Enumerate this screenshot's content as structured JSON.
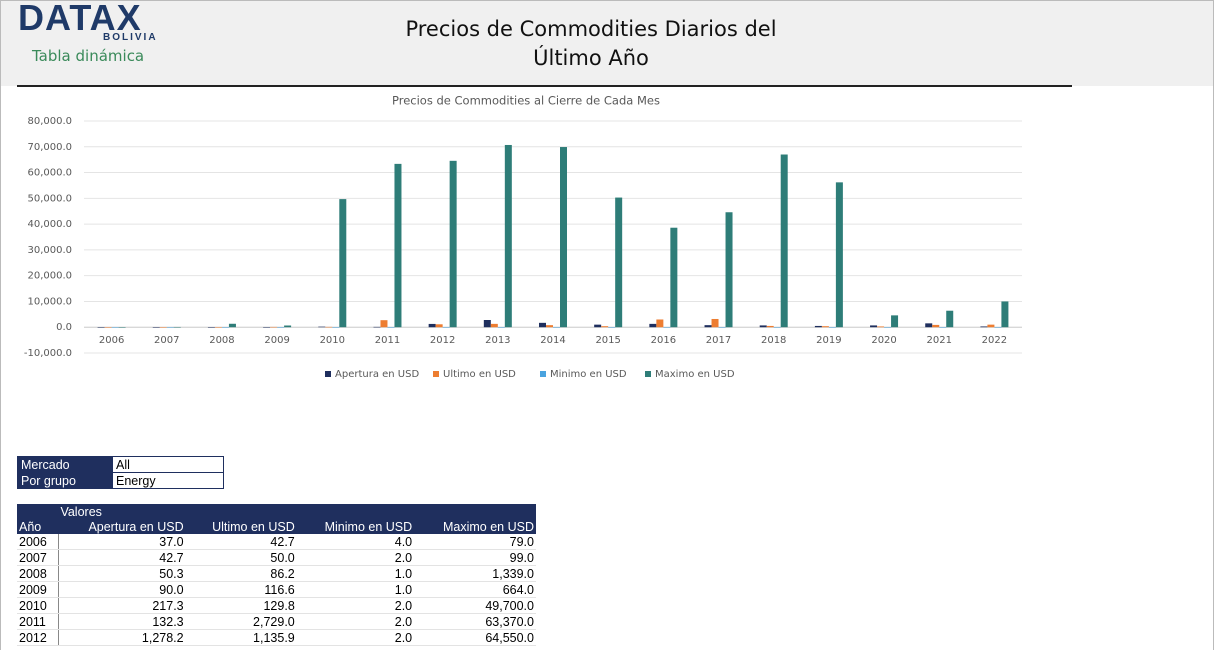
{
  "header": {
    "logo": "DATAX",
    "logo_sub": "BOLIVIA",
    "subtitle": "Tabla dinámica",
    "title": "Precios de Commodities Diarios del Último Año"
  },
  "chart_data": {
    "type": "bar",
    "title": "Precios de Commodities al Cierre de Cada Mes",
    "categories": [
      "2006",
      "2007",
      "2008",
      "2009",
      "2010",
      "2011",
      "2012",
      "2013",
      "2014",
      "2015",
      "2016",
      "2017",
      "2018",
      "2019",
      "2020",
      "2021",
      "2022"
    ],
    "series": [
      {
        "name": "Apertura en USD",
        "color": "#1f2f5e",
        "values": [
          37.0,
          42.7,
          50.3,
          90.0,
          217.3,
          132.3,
          1278.2,
          2800,
          1700,
          1000,
          1300,
          800,
          700,
          500,
          700,
          1500,
          300
        ]
      },
      {
        "name": "Ultimo en USD",
        "color": "#ed7d31",
        "values": [
          42.7,
          50.0,
          86.2,
          116.6,
          129.8,
          2729.0,
          1135.9,
          1300,
          800,
          400,
          3000,
          3200,
          500,
          400,
          300,
          900,
          1000
        ]
      },
      {
        "name": "Minimo en USD",
        "color": "#4aa3df",
        "values": [
          4.0,
          2.0,
          1.0,
          1.0,
          2.0,
          2.0,
          2.0,
          1,
          1,
          1,
          1,
          1,
          1,
          1,
          -40,
          1,
          1
        ]
      },
      {
        "name": "Maximo en USD",
        "color": "#2e7d78",
        "values": [
          79.0,
          99.0,
          1339.0,
          664.0,
          49700.0,
          63370.0,
          64550.0,
          70700,
          69900,
          50300,
          38600,
          44600,
          67000,
          56200,
          4600,
          6400,
          10000
        ]
      }
    ],
    "ylim": [
      -10000,
      80000
    ],
    "yticks": [
      {
        "value": -10000,
        "label": "-10,000.0"
      },
      {
        "value": 0,
        "label": "0.0"
      },
      {
        "value": 10000,
        "label": "10,000.0"
      },
      {
        "value": 20000,
        "label": "20,000.0"
      },
      {
        "value": 30000,
        "label": "30,000.0"
      },
      {
        "value": 40000,
        "label": "40,000.0"
      },
      {
        "value": 50000,
        "label": "50,000.0"
      },
      {
        "value": 60000,
        "label": "60,000.0"
      },
      {
        "value": 70000,
        "label": "70,000.0"
      },
      {
        "value": 80000,
        "label": "80,000.0"
      }
    ],
    "grid": true,
    "legend": "bottom"
  },
  "filters": {
    "rows": [
      [
        "Mercado",
        "All"
      ],
      [
        "Por grupo",
        "Energy"
      ]
    ]
  },
  "pivot": {
    "values_label": "Valores",
    "columns": [
      "Año",
      "Apertura en USD",
      "Ultimo en USD",
      "Minimo en USD",
      "Maximo en USD"
    ],
    "rows": [
      [
        "2006",
        "37.0",
        "42.7",
        "4.0",
        "79.0"
      ],
      [
        "2007",
        "42.7",
        "50.0",
        "2.0",
        "99.0"
      ],
      [
        "2008",
        "50.3",
        "86.2",
        "1.0",
        "1,339.0"
      ],
      [
        "2009",
        "90.0",
        "116.6",
        "1.0",
        "664.0"
      ],
      [
        "2010",
        "217.3",
        "129.8",
        "2.0",
        "49,700.0"
      ],
      [
        "2011",
        "132.3",
        "2,729.0",
        "2.0",
        "63,370.0"
      ],
      [
        "2012",
        "1,278.2",
        "1,135.9",
        "2.0",
        "64,550.0"
      ]
    ]
  }
}
